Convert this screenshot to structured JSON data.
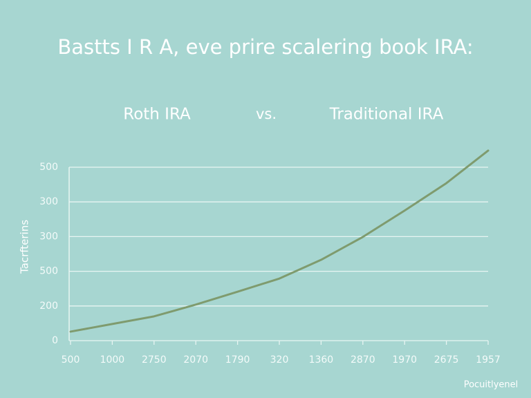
{
  "chart_data": {
    "type": "line",
    "title": "Bastts I R A, eve prire scalering book IRA:",
    "subtitle_left": "Roth IRA",
    "subtitle_mid": "vs.",
    "subtitle_right": "Traditional IRA",
    "ylabel": "Tacrfterins",
    "footer": "Pocuitlyenel",
    "categories": [
      "500",
      "1000",
      "2750",
      "2070",
      "1790",
      "320",
      "1360",
      "2870",
      "1970",
      "2675",
      "1957"
    ],
    "series": [
      {
        "name": "Roth IRA",
        "color": "#7f9b6e",
        "values": [
          26,
          48,
          70,
          104,
          141,
          179,
          233,
          299,
          375,
          454,
          548
        ]
      }
    ],
    "ylim": [
      0,
      500
    ],
    "yticks": [
      0,
      {
        "value": 100,
        "label": "200"
      },
      {
        "value": 200,
        "label": "500"
      },
      300,
      {
        "value": 400,
        "label": "300"
      },
      500
    ],
    "grid": true
  }
}
